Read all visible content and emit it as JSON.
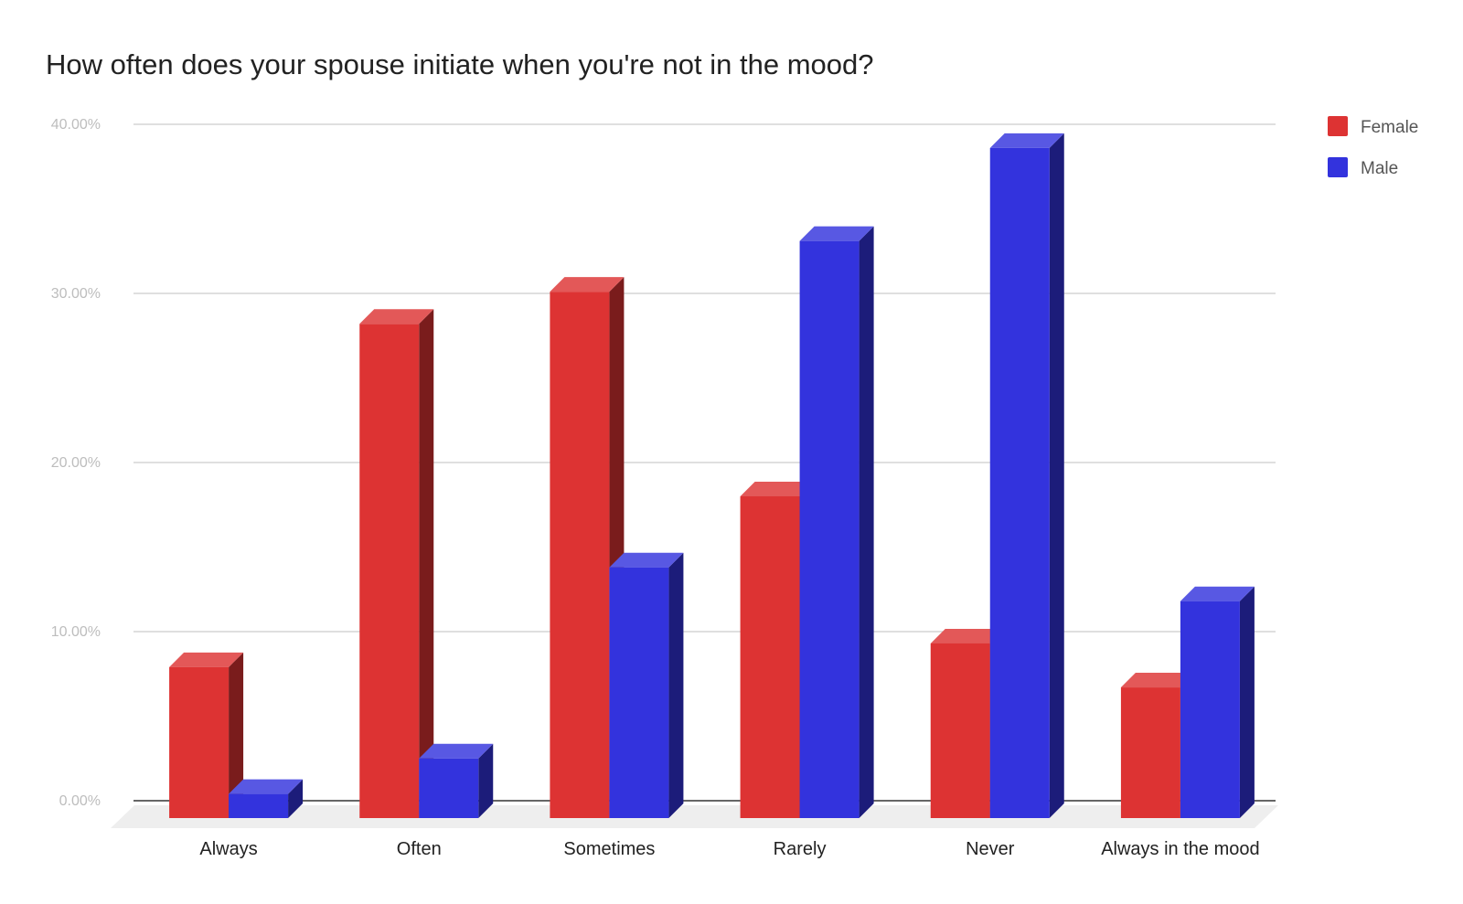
{
  "chart_data": {
    "type": "bar",
    "style": "3d-column",
    "title": "How often does your spouse initiate when you're not in the mood?",
    "xlabel": "",
    "ylabel": "",
    "categories": [
      "Always",
      "Often",
      "Sometimes",
      "Rarely",
      "Never",
      "Always in the mood"
    ],
    "series": [
      {
        "name": "Female",
        "values": [
          7.9,
          28.2,
          30.1,
          18.0,
          9.3,
          6.7
        ],
        "color": "#dd3333"
      },
      {
        "name": "Male",
        "values": [
          0.4,
          2.5,
          13.8,
          33.1,
          38.6,
          11.8
        ],
        "color": "#3333dd"
      }
    ],
    "ylim": [
      0,
      40
    ],
    "yticks": [
      0,
      10,
      20,
      30,
      40
    ],
    "ytick_labels": [
      "0.00%",
      "10.00%",
      "20.00%",
      "30.00%",
      "40.00%"
    ],
    "grid": true,
    "legend_position": "right-top"
  }
}
